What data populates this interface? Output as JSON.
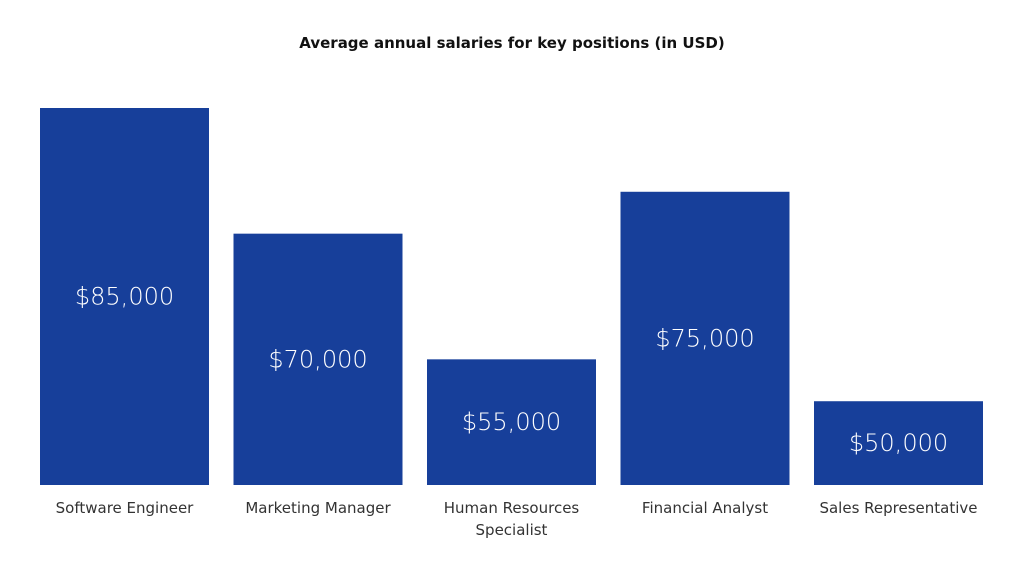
{
  "chart_data": {
    "type": "bar",
    "title": "Average annual salaries for key positions (in USD)",
    "categories": [
      "Software Engineer",
      "Marketing Manager",
      "Human Resources Specialist",
      "Financial Analyst",
      "Sales Representative"
    ],
    "values": [
      85000,
      70000,
      55000,
      75000,
      50000
    ],
    "data_labels": [
      "$85,000",
      "$70,000",
      "$55,000",
      "$75,000",
      "$50,000"
    ],
    "ylim": [
      40000,
      85000
    ],
    "grid": false,
    "legend": "none",
    "colors": {
      "bar": "#173f9a",
      "bar_label": "#ffffff"
    }
  }
}
